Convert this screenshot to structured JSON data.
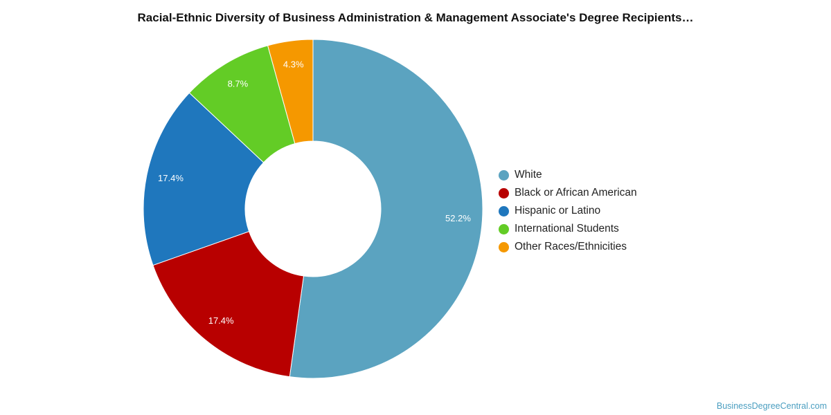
{
  "chart_data": {
    "type": "pie",
    "title": "Racial-Ethnic Diversity of Business Administration & Management Associate's Degree Recipients…",
    "categories": [
      "White",
      "Black or African American",
      "Hispanic or Latino",
      "International Students",
      "Other Races/Ethnicities"
    ],
    "values": [
      52.2,
      17.4,
      17.4,
      8.7,
      4.3
    ],
    "labels": [
      "52.2%",
      "17.4%",
      "17.4%",
      "8.7%",
      "4.3%"
    ],
    "colors": [
      "#5ba3c0",
      "#b80000",
      "#1f77bd",
      "#63cc26",
      "#f59800"
    ],
    "legend_position": "right"
  },
  "credit": "BusinessDegreeCentral.com"
}
